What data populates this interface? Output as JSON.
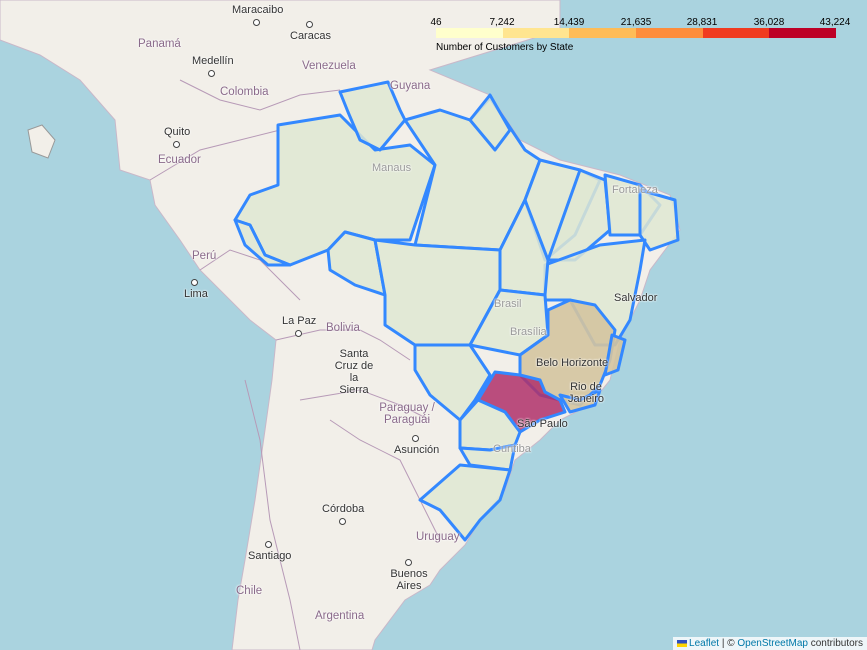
{
  "legend": {
    "ticks": [
      "46",
      "7,242",
      "14,439",
      "21,635",
      "28,831",
      "36,028",
      "43,224"
    ],
    "caption": "Number of Customers by State",
    "colors": [
      "#ffffcc",
      "#ffe590",
      "#febc57",
      "#fd8d3c",
      "#f03b20",
      "#bd0026"
    ]
  },
  "places": {
    "maracaibo": "Maracaibo",
    "caracas": "Caracas",
    "panama": "Panamá",
    "medellin": "Medellín",
    "venezuela": "Venezuela",
    "guyana": "Guyana",
    "colombia": "Colombia",
    "quito": "Quito",
    "ecuador": "Ecuador",
    "manaus": "Manaus",
    "fortaleza": "Fortaleza",
    "peru": "Perú",
    "lima": "Lima",
    "brasil": "Brasil",
    "brasilia": "Brasília",
    "salvador": "Salvador",
    "lapaz": "La Paz",
    "bolivia": "Bolivia",
    "belohorizonte": "Belo Horizonte",
    "santacruz": "Santa Cruz de la Sierra",
    "rio": "Rio de Janeiro",
    "paraguay": "Paraguay / Paraguái",
    "saopaulo": "São Paulo",
    "asuncion": "Asunción",
    "curitiba": "Curitiba",
    "cordoba": "Córdoba",
    "uruguay": "Uruguay",
    "santiago": "Santiago",
    "buenosaires": "Buenos Aires",
    "chile": "Chile",
    "argentina": "Argentina"
  },
  "attribution": {
    "leaflet": "Leaflet",
    "separator": "| ©",
    "osm": "OpenStreetMap",
    "contributors": "contributors"
  },
  "colors": {
    "ocean": "#aad3df",
    "land": "#f2efe9",
    "state_fill": "#dfe8d2",
    "state_border": "#3388ff",
    "sp_fill": "#b0306a",
    "mg_fill": "#d4c4a0"
  }
}
